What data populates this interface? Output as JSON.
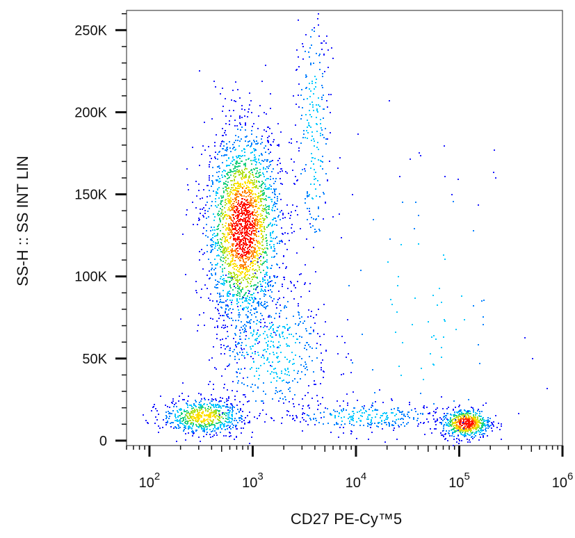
{
  "chart_data": {
    "type": "scatter",
    "subtype": "flow-cytometry-density-dot-plot",
    "title": "",
    "xlabel": "CD27 PE-Cy™5",
    "ylabel": "SS-H :: SS INT LIN",
    "x_scale": "log",
    "y_scale": "linear",
    "xlim": [
      60,
      1000000
    ],
    "ylim": [
      -3000,
      262000
    ],
    "x_ticks": [
      {
        "value": 100,
        "base": "10",
        "exp": "2"
      },
      {
        "value": 1000,
        "base": "10",
        "exp": "3"
      },
      {
        "value": 10000,
        "base": "10",
        "exp": "4"
      },
      {
        "value": 100000,
        "base": "10",
        "exp": "5"
      },
      {
        "value": 1000000,
        "base": "10",
        "exp": "6"
      }
    ],
    "y_ticks": [
      {
        "value": 0,
        "label": "0"
      },
      {
        "value": 50000,
        "label": "50K"
      },
      {
        "value": 100000,
        "label": "100K"
      },
      {
        "value": 150000,
        "label": "150K"
      },
      {
        "value": 200000,
        "label": "200K"
      },
      {
        "value": 250000,
        "label": "250K"
      }
    ],
    "grid": false,
    "legend": "none",
    "density_colormap": [
      "#1a1aff",
      "#0080ff",
      "#00c8ff",
      "#20d080",
      "#b0e020",
      "#ffe000",
      "#ff8000",
      "#ff1000"
    ],
    "populations": [
      {
        "x_center": 800,
        "y_center": 130000,
        "x_log_spread": 0.18,
        "y_spread": 30000,
        "n": 2400
      },
      {
        "x_center": 330,
        "y_center": 15000,
        "x_log_spread": 0.2,
        "y_spread": 5500,
        "n": 650
      },
      {
        "x_center": 3800,
        "y_center": 185000,
        "x_log_spread": 0.09,
        "y_spread": 45000,
        "n": 260
      },
      {
        "x_center": 115000,
        "y_center": 11000,
        "x_log_spread": 0.12,
        "y_spread": 4500,
        "n": 600
      },
      {
        "x_center": 12000,
        "y_center": 15000,
        "x_log_spread": 0.4,
        "y_spread": 4500,
        "n": 280
      },
      {
        "x_center": 1500,
        "y_center": 55000,
        "x_log_spread": 0.3,
        "y_spread": 22000,
        "n": 500
      },
      {
        "x_center": 40000,
        "y_center": 80000,
        "x_log_spread": 0.55,
        "y_spread": 50000,
        "n": 110
      }
    ]
  }
}
